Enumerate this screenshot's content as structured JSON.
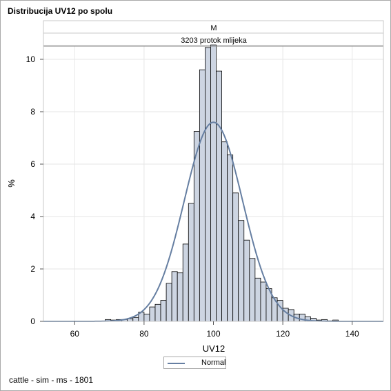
{
  "title": "Distribucija UV12 po spolu",
  "footnote": "cattle - sim - ms - 1801",
  "panel": {
    "row1_label": "M",
    "row2_label": "3203 protok mlijeka"
  },
  "legend": {
    "entries": [
      "Normal"
    ]
  },
  "colors": {
    "bar_fill": "#cdd5e2",
    "bar_stroke": "#000000",
    "curve": "#667fa2",
    "grid": "#e6e6e6",
    "header_fill": "#ffffff"
  },
  "chart_data": {
    "type": "bar",
    "title": "Distribucija UV12 po spolu",
    "xlabel": "UV12",
    "ylabel": "%",
    "xlim": [
      51,
      149
    ],
    "ylim": [
      0,
      10.5
    ],
    "x_ticks": [
      60,
      80,
      100,
      120,
      140
    ],
    "y_ticks": [
      0,
      2,
      4,
      6,
      8,
      10
    ],
    "grid": true,
    "bin_width": 1.6,
    "histogram": {
      "bin_centers": [
        69.6,
        71.2,
        72.8,
        74.4,
        76.0,
        77.6,
        79.2,
        80.8,
        82.4,
        84.0,
        85.6,
        87.2,
        88.8,
        90.4,
        92.0,
        93.6,
        95.2,
        96.8,
        98.4,
        100.0,
        101.6,
        103.2,
        104.8,
        106.4,
        108.0,
        109.6,
        111.2,
        112.8,
        114.4,
        116.0,
        117.6,
        119.2,
        120.8,
        122.4,
        124.0,
        125.6,
        127.2,
        128.8,
        130.4,
        132.0,
        133.6,
        135.2
      ],
      "percent": [
        0.07,
        0.05,
        0.07,
        0.07,
        0.1,
        0.15,
        0.35,
        0.28,
        0.55,
        0.65,
        0.8,
        1.45,
        1.9,
        1.85,
        2.95,
        4.5,
        7.25,
        9.6,
        10.45,
        10.55,
        9.55,
        6.85,
        6.35,
        4.9,
        3.85,
        3.1,
        2.4,
        1.65,
        1.5,
        1.25,
        0.9,
        0.8,
        0.5,
        0.45,
        0.28,
        0.28,
        0.18,
        0.12,
        0.05,
        0.07,
        0.02,
        0.05
      ]
    },
    "series": [
      {
        "name": "Normal",
        "type": "normal-density",
        "mean": 100.0,
        "sd": 8.4,
        "scale_percent_per_bin": 1.6
      }
    ]
  }
}
